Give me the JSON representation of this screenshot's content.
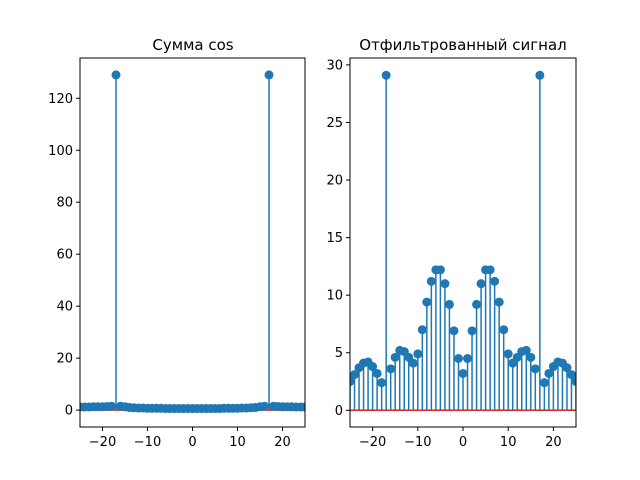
{
  "chart_data": [
    {
      "type": "stem",
      "title": "Сумма cos",
      "xlabel": "",
      "ylabel": "",
      "xlim": [
        -25,
        25
      ],
      "ylim": [
        -6.5,
        135.5
      ],
      "xticks": [
        -20,
        -10,
        0,
        10,
        20
      ],
      "yticks": [
        0,
        20,
        40,
        60,
        80,
        100,
        120
      ],
      "grid": false,
      "colors": {
        "stem": "#1f77b4",
        "marker": "#1f77b4",
        "baseline": "#d62728"
      },
      "x": [
        -25,
        -24,
        -23,
        -22,
        -21,
        -20,
        -19,
        -18,
        -17,
        -16,
        -15,
        -14,
        -13,
        -12,
        -11,
        -10,
        -9,
        -8,
        -7,
        -6,
        -5,
        -4,
        -3,
        -2,
        -1,
        0,
        1,
        2,
        3,
        4,
        5,
        6,
        7,
        8,
        9,
        10,
        11,
        12,
        13,
        14,
        15,
        16,
        17,
        18,
        19,
        20,
        21,
        22,
        23,
        24,
        25
      ],
      "y": [
        1.2,
        1.2,
        1.2,
        1.3,
        1.3,
        1.3,
        1.4,
        1.5,
        129,
        1.5,
        1.3,
        1.0,
        0.9,
        0.8,
        0.8,
        0.7,
        0.7,
        0.7,
        0.7,
        0.6,
        0.6,
        0.6,
        0.6,
        0.6,
        0.6,
        0.6,
        0.6,
        0.6,
        0.6,
        0.6,
        0.6,
        0.6,
        0.7,
        0.7,
        0.7,
        0.7,
        0.8,
        0.8,
        0.9,
        1.0,
        1.3,
        1.5,
        129,
        1.5,
        1.4,
        1.3,
        1.3,
        1.3,
        1.2,
        1.2,
        1.2
      ]
    },
    {
      "type": "stem",
      "title": "Отфильтрованный сигнал",
      "xlabel": "",
      "ylabel": "",
      "xlim": [
        -25,
        25
      ],
      "ylim": [
        -1.45,
        30.6
      ],
      "xticks": [
        -20,
        -10,
        0,
        10,
        20
      ],
      "yticks": [
        0,
        5,
        10,
        15,
        20,
        25,
        30
      ],
      "grid": false,
      "colors": {
        "stem": "#1f77b4",
        "marker": "#1f77b4",
        "baseline": "#d62728"
      },
      "x": [
        -25,
        -24,
        -23,
        -22,
        -21,
        -20,
        -19,
        -18,
        -17,
        -16,
        -15,
        -14,
        -13,
        -12,
        -11,
        -10,
        -9,
        -8,
        -7,
        -6,
        -5,
        -4,
        -3,
        -2,
        -1,
        0,
        1,
        2,
        3,
        4,
        5,
        6,
        7,
        8,
        9,
        10,
        11,
        12,
        13,
        14,
        15,
        16,
        17,
        18,
        19,
        20,
        21,
        22,
        23,
        24,
        25
      ],
      "y": [
        2.5,
        3.1,
        3.7,
        4.1,
        4.2,
        3.8,
        3.2,
        2.4,
        29.1,
        3.6,
        4.6,
        5.2,
        5.1,
        4.6,
        4.1,
        4.9,
        7.0,
        9.4,
        11.2,
        12.2,
        12.2,
        11.0,
        9.2,
        6.9,
        4.5,
        3.2,
        4.5,
        6.9,
        9.2,
        11.0,
        12.2,
        12.2,
        11.2,
        9.4,
        7.0,
        4.9,
        4.1,
        4.6,
        5.1,
        5.2,
        4.6,
        3.6,
        29.1,
        2.4,
        3.2,
        3.8,
        4.2,
        4.1,
        3.7,
        3.1,
        2.5
      ]
    }
  ]
}
